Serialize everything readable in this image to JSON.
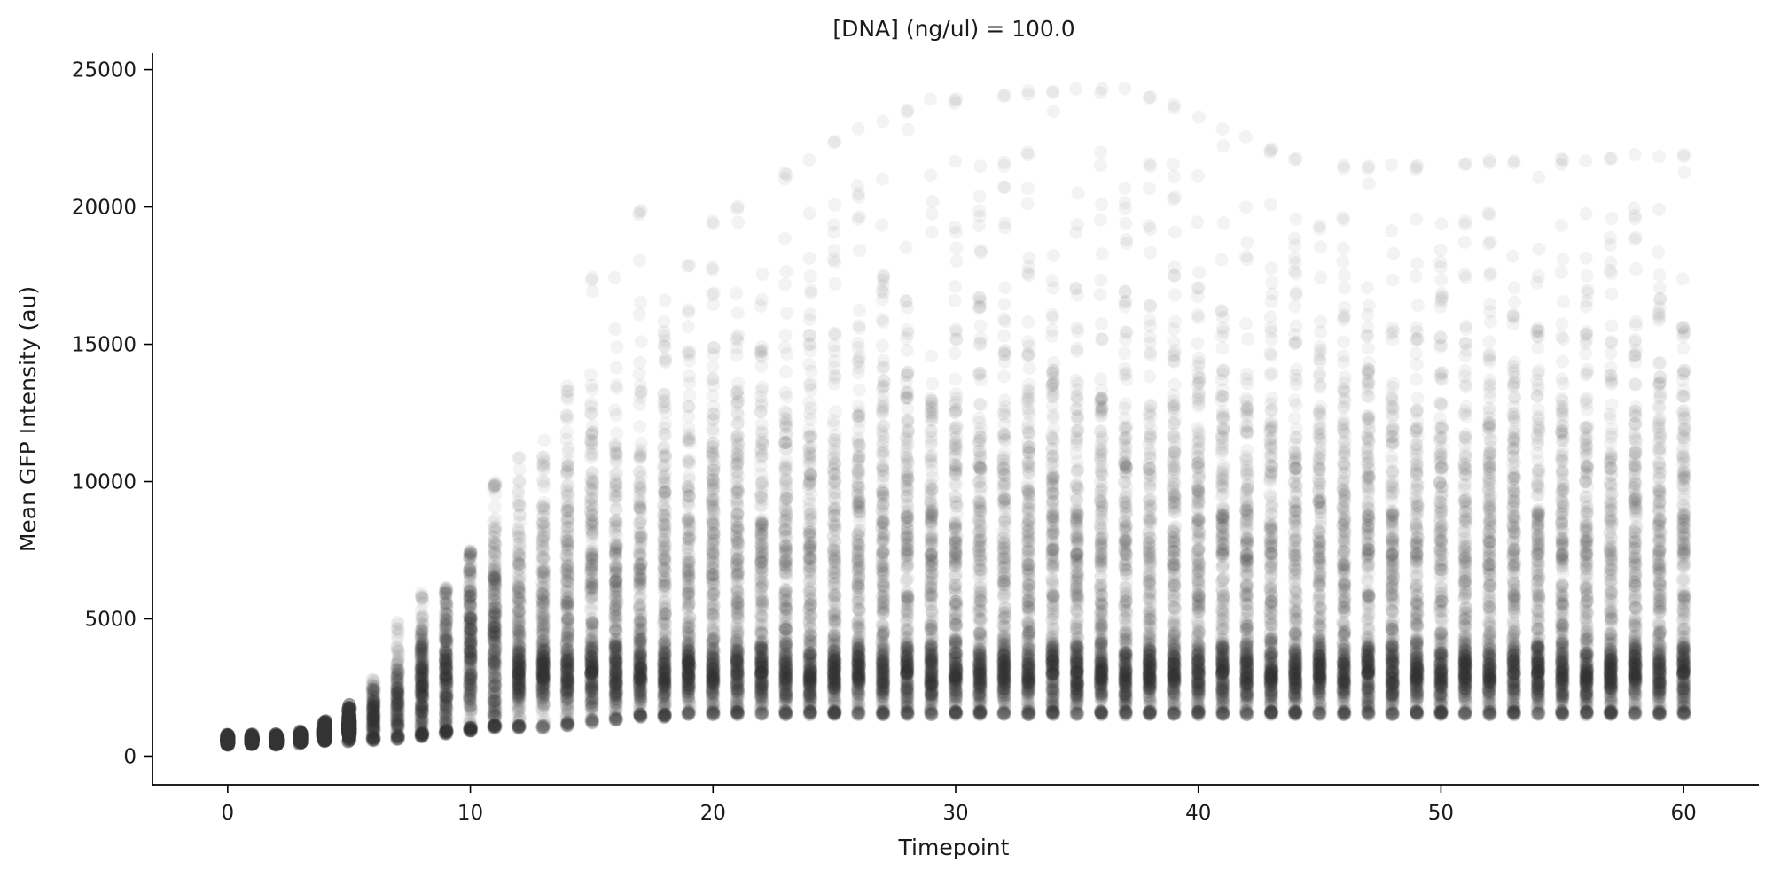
{
  "chart_data": {
    "type": "scatter",
    "title": "[DNA] (ng/ul) = 100.0",
    "xlabel": "Timepoint",
    "ylabel": "Mean GFP Intensity (au)",
    "xlim": [
      -3.1,
      63.1
    ],
    "ylim": [
      -1050,
      25600
    ],
    "xticks": [
      0,
      10,
      20,
      30,
      40,
      50,
      60
    ],
    "yticks": [
      0,
      5000,
      10000,
      15000,
      20000,
      25000
    ],
    "grid": false,
    "legend": "none",
    "point_color": "#333333",
    "point_opacity": 0.06,
    "timepoints_start": 0,
    "timepoints_end": 60,
    "distribution_summary": [
      {
        "x": 0,
        "median": 550,
        "min": 350,
        "max": 800
      },
      {
        "x": 1,
        "median": 560,
        "min": 350,
        "max": 800
      },
      {
        "x": 2,
        "median": 570,
        "min": 350,
        "max": 820
      },
      {
        "x": 3,
        "median": 650,
        "min": 400,
        "max": 950
      },
      {
        "x": 4,
        "median": 800,
        "min": 450,
        "max": 1300
      },
      {
        "x": 5,
        "median": 1000,
        "min": 500,
        "max": 1900
      },
      {
        "x": 6,
        "median": 1300,
        "min": 550,
        "max": 2800
      },
      {
        "x": 7,
        "median": 1700,
        "min": 600,
        "max": 4900
      },
      {
        "x": 8,
        "median": 2200,
        "min": 700,
        "max": 6000
      },
      {
        "x": 9,
        "median": 2700,
        "min": 800,
        "max": 6200
      },
      {
        "x": 10,
        "median": 3200,
        "min": 900,
        "max": 7500
      },
      {
        "x": 11,
        "median": 3600,
        "min": 1000,
        "max": 10000
      },
      {
        "x": 12,
        "median": 4000,
        "min": 1000,
        "max": 11000
      },
      {
        "x": 13,
        "median": 4300,
        "min": 1000,
        "max": 12000
      },
      {
        "x": 14,
        "median": 4800,
        "min": 1100,
        "max": 13500
      },
      {
        "x": 15,
        "median": 5000,
        "min": 1200,
        "max": 17500
      },
      {
        "x": 16,
        "median": 5200,
        "min": 1300,
        "max": 17500
      },
      {
        "x": 17,
        "median": 5300,
        "min": 1400,
        "max": 20000
      },
      {
        "x": 18,
        "median": 5500,
        "min": 1400,
        "max": 18500
      },
      {
        "x": 19,
        "median": 5600,
        "min": 1500,
        "max": 18000
      },
      {
        "x": 20,
        "median": 5700,
        "min": 1500,
        "max": 19500
      },
      {
        "x": 25,
        "median": 5900,
        "min": 1500,
        "max": 22500
      },
      {
        "x": 29,
        "median": 6000,
        "min": 1500,
        "max": 24000
      },
      {
        "x": 37,
        "median": 6000,
        "min": 1500,
        "max": 24500
      },
      {
        "x": 45,
        "median": 6000,
        "min": 1500,
        "max": 21500
      },
      {
        "x": 60,
        "median": 6000,
        "min": 1500,
        "max": 22000
      }
    ]
  }
}
